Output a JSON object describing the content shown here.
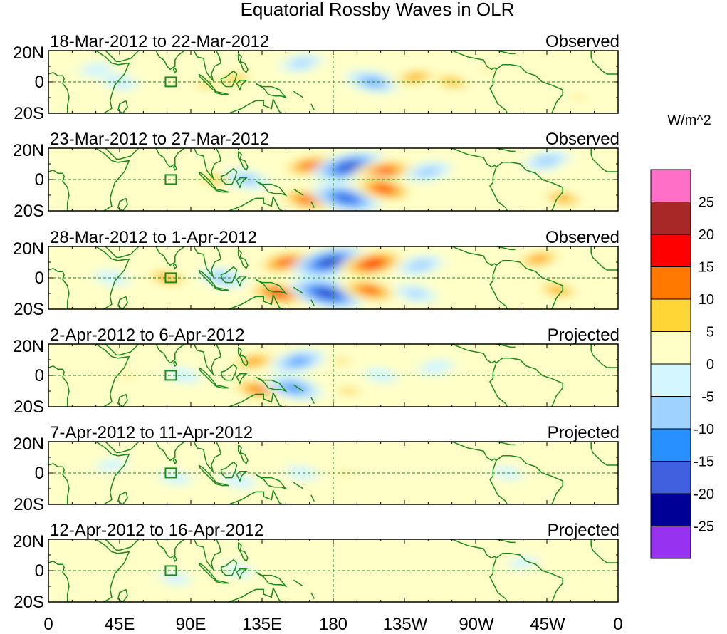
{
  "chart_data": {
    "type": "heatmap",
    "title": "Equatorial Rossby Waves in OLR",
    "units_label": "W/m^2",
    "x_tick_labels": [
      "0",
      "45E",
      "90E",
      "135E",
      "180",
      "135W",
      "90W",
      "45W",
      "0"
    ],
    "x_ticks_deg": [
      0,
      45,
      90,
      135,
      180,
      225,
      270,
      315,
      360
    ],
    "xlim": [
      0,
      360
    ],
    "y_tick_labels": [
      "20N",
      "0",
      "20S"
    ],
    "ylim": [
      -20,
      20
    ],
    "colorbar": {
      "labels": [
        "25",
        "20",
        "15",
        "10",
        "5",
        "0",
        "-5",
        "-10",
        "-15",
        "-20",
        "-25"
      ],
      "bins": [
        {
          "range": "> 25",
          "color": "#ff6ec7"
        },
        {
          "range": "20 to 25",
          "color": "#a82828"
        },
        {
          "range": "15 to 20",
          "color": "#ff0000"
        },
        {
          "range": "10 to 15",
          "color": "#ff7800"
        },
        {
          "range": "5 to 10",
          "color": "#ffd636"
        },
        {
          "range": "0 to 5",
          "color": "#ffffc8"
        },
        {
          "range": "-5 to 0",
          "color": "#d4f6ff"
        },
        {
          "range": "-10 to -5",
          "color": "#a0d2ff"
        },
        {
          "range": "-15 to -10",
          "color": "#2890ff"
        },
        {
          "range": "-20 to -15",
          "color": "#4060e0"
        },
        {
          "range": "-25 to -20",
          "color": "#000096"
        },
        {
          "range": "< -25",
          "color": "#9632f0"
        }
      ]
    },
    "panels": [
      {
        "period": "18-Mar-2012 to 22-Mar-2012",
        "status": "Observed",
        "anomalies": [
          {
            "lon": 205,
            "lat": 0,
            "value": -13
          },
          {
            "lon": 232,
            "lat": 3,
            "value": 12
          },
          {
            "lon": 255,
            "lat": 0,
            "value": 11
          },
          {
            "lon": 278,
            "lat": 8,
            "value": 6
          },
          {
            "lon": 100,
            "lat": -2,
            "value": 8
          },
          {
            "lon": 118,
            "lat": 2,
            "value": 10
          },
          {
            "lon": 145,
            "lat": 0,
            "value": 5
          },
          {
            "lon": 160,
            "lat": 12,
            "value": -8
          },
          {
            "lon": 30,
            "lat": 8,
            "value": -4
          },
          {
            "lon": 45,
            "lat": 0,
            "value": -6
          },
          {
            "lon": 335,
            "lat": -10,
            "value": 6
          }
        ]
      },
      {
        "period": "23-Mar-2012 to 27-Mar-2012",
        "status": "Observed",
        "anomalies": [
          {
            "lon": 165,
            "lat": 9,
            "value": 16
          },
          {
            "lon": 163,
            "lat": -13,
            "value": 16
          },
          {
            "lon": 190,
            "lat": 8,
            "value": -22
          },
          {
            "lon": 188,
            "lat": -12,
            "value": -20
          },
          {
            "lon": 212,
            "lat": 5,
            "value": 18
          },
          {
            "lon": 212,
            "lat": -6,
            "value": 18
          },
          {
            "lon": 240,
            "lat": 5,
            "value": -10
          },
          {
            "lon": 262,
            "lat": 0,
            "value": 5
          },
          {
            "lon": 315,
            "lat": 12,
            "value": -10
          },
          {
            "lon": 325,
            "lat": -12,
            "value": 12
          },
          {
            "lon": 105,
            "lat": 0,
            "value": 10
          },
          {
            "lon": 125,
            "lat": 0,
            "value": -10
          },
          {
            "lon": 60,
            "lat": 5,
            "value": 5
          }
        ]
      },
      {
        "period": "28-Mar-2012 to 1-Apr-2012",
        "status": "Observed",
        "anomalies": [
          {
            "lon": 150,
            "lat": 10,
            "value": 17
          },
          {
            "lon": 145,
            "lat": -10,
            "value": 18
          },
          {
            "lon": 178,
            "lat": 10,
            "value": -23
          },
          {
            "lon": 176,
            "lat": -10,
            "value": -23
          },
          {
            "lon": 205,
            "lat": 9,
            "value": 20
          },
          {
            "lon": 203,
            "lat": -8,
            "value": 17
          },
          {
            "lon": 235,
            "lat": 8,
            "value": -10
          },
          {
            "lon": 232,
            "lat": -10,
            "value": -8
          },
          {
            "lon": 310,
            "lat": 12,
            "value": 13
          },
          {
            "lon": 322,
            "lat": -8,
            "value": 12
          },
          {
            "lon": 75,
            "lat": 0,
            "value": 12
          },
          {
            "lon": 110,
            "lat": 0,
            "value": -10
          },
          {
            "lon": 40,
            "lat": 0,
            "value": -5
          }
        ]
      },
      {
        "period": "2-Apr-2012 to 6-Apr-2012",
        "status": "Projected",
        "anomalies": [
          {
            "lon": 130,
            "lat": 9,
            "value": 13
          },
          {
            "lon": 132,
            "lat": -9,
            "value": 15
          },
          {
            "lon": 158,
            "lat": 9,
            "value": -14
          },
          {
            "lon": 155,
            "lat": -8,
            "value": -15
          },
          {
            "lon": 185,
            "lat": 9,
            "value": 7
          },
          {
            "lon": 190,
            "lat": -10,
            "value": 8
          },
          {
            "lon": 210,
            "lat": 0,
            "value": -4
          },
          {
            "lon": 245,
            "lat": 5,
            "value": -5
          },
          {
            "lon": 50,
            "lat": 0,
            "value": 6
          },
          {
            "lon": 85,
            "lat": 0,
            "value": -5
          },
          {
            "lon": 290,
            "lat": 0,
            "value": 3
          }
        ]
      },
      {
        "period": "7-Apr-2012 to 11-Apr-2012",
        "status": "Projected",
        "anomalies": [
          {
            "lon": 187,
            "lat": 0,
            "value": 6
          },
          {
            "lon": 160,
            "lat": 0,
            "value": -4
          },
          {
            "lon": 120,
            "lat": -5,
            "value": -5
          },
          {
            "lon": 80,
            "lat": -3,
            "value": -4
          },
          {
            "lon": 240,
            "lat": 0,
            "value": 3
          },
          {
            "lon": 290,
            "lat": 0,
            "value": -3
          },
          {
            "lon": 340,
            "lat": 5,
            "value": 3
          },
          {
            "lon": 40,
            "lat": 5,
            "value": -3
          }
        ]
      },
      {
        "period": "12-Apr-2012 to 16-Apr-2012",
        "status": "Projected",
        "anomalies": [
          {
            "lon": 170,
            "lat": 3,
            "value": 4
          },
          {
            "lon": 195,
            "lat": -10,
            "value": 4
          },
          {
            "lon": 120,
            "lat": 0,
            "value": -3
          },
          {
            "lon": 80,
            "lat": -5,
            "value": -3
          },
          {
            "lon": 250,
            "lat": 0,
            "value": 2
          },
          {
            "lon": 300,
            "lat": 5,
            "value": -2
          }
        ]
      }
    ]
  }
}
